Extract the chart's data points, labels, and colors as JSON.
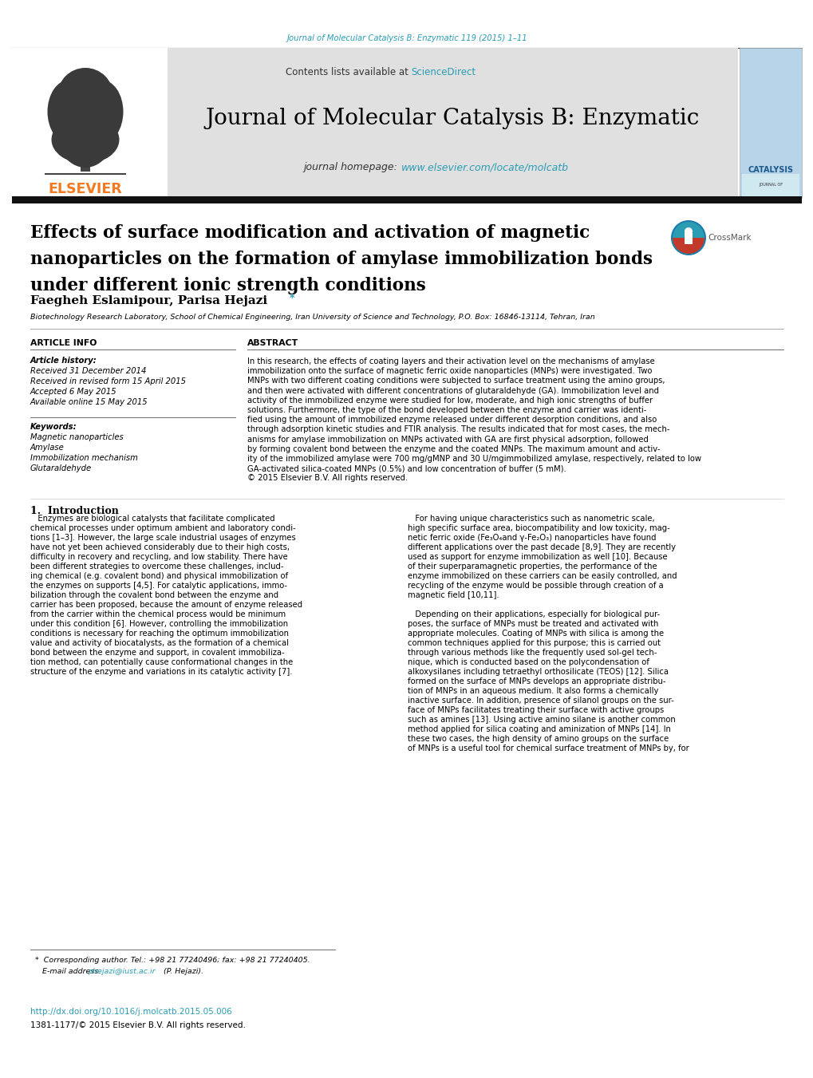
{
  "page_bg": "#ffffff",
  "top_journal_ref": "Journal of Molecular Catalysis B: Enzymatic 119 (2015) 1–11",
  "top_journal_ref_color": "#2a9db5",
  "header_bg": "#e0e0e0",
  "header_contents_text": "Contents lists available at ",
  "header_sciencedirect": "ScienceDirect",
  "header_sciencedirect_color": "#2a9db5",
  "journal_title": "Journal of Molecular Catalysis B: Enzymatic",
  "journal_homepage_prefix": "journal homepage: ",
  "journal_homepage_url": "www.elsevier.com/locate/molcatb",
  "journal_homepage_url_color": "#2a9db5",
  "elsevier_color": "#f47920",
  "paper_title_line1": "Effects of surface modification and activation of magnetic",
  "paper_title_line2": "nanoparticles on the formation of amylase immobilization bonds",
  "paper_title_line3": "under different ionic strength conditions",
  "author_line": "Faegheh Eslamipour, Parisa Hejazi",
  "author_asterisk": "*",
  "author_asterisk_color": "#2a9db5",
  "affiliation": "Biotechnology Research Laboratory, School of Chemical Engineering, Iran University of Science and Technology, P.O. Box: 16846-13114, Tehran, Iran",
  "article_info_title": "ARTICLE INFO",
  "article_history_label": "Article history:",
  "received_1": "Received 31 December 2014",
  "received_revised": "Received in revised form 15 April 2015",
  "accepted": "Accepted 6 May 2015",
  "available": "Available online 15 May 2015",
  "keywords_label": "Keywords:",
  "keywords": [
    "Magnetic nanoparticles",
    "Amylase",
    "Immobilization mechanism",
    "Glutaraldehyde"
  ],
  "abstract_title": "ABSTRACT",
  "abstract_lines": [
    "In this research, the effects of coating layers and their activation level on the mechanisms of amylase",
    "immobilization onto the surface of magnetic ferric oxide nanoparticles (MNPs) were investigated. Two",
    "MNPs with two different coating conditions were subjected to surface treatment using the amino groups,",
    "and then were activated with different concentrations of glutaraldehyde (GA). Immobilization level and",
    "activity of the immobilized enzyme were studied for low, moderate, and high ionic strengths of buffer",
    "solutions. Furthermore, the type of the bond developed between the enzyme and carrier was identi-",
    "fied using the amount of immobilized enzyme released under different desorption conditions, and also",
    "through adsorption kinetic studies and FTIR analysis. The results indicated that for most cases, the mech-",
    "anisms for amylase immobilization on MNPs activated with GA are first physical adsorption, followed",
    "by forming covalent bond between the enzyme and the coated MNPs. The maximum amount and activ-",
    "ity of the immobilized amylase were 700 mg/gMNP and 30 U/mgimmobilized amylase, respectively, related to low",
    "GA-activated silica-coated MNPs (0.5%) and low concentration of buffer (5 mM).",
    "© 2015 Elsevier B.V. All rights reserved."
  ],
  "intro_title": "1.  Introduction",
  "intro_col1_lines": [
    "   Enzymes are biological catalysts that facilitate complicated",
    "chemical processes under optimum ambient and laboratory condi-",
    "tions [1–3]. However, the large scale industrial usages of enzymes",
    "have not yet been achieved considerably due to their high costs,",
    "difficulty in recovery and recycling, and low stability. There have",
    "been different strategies to overcome these challenges, includ-",
    "ing chemical (e.g. covalent bond) and physical immobilization of",
    "the enzymes on supports [4,5]. For catalytic applications, immo-",
    "bilization through the covalent bond between the enzyme and",
    "carrier has been proposed, because the amount of enzyme released",
    "from the carrier within the chemical process would be minimum",
    "under this condition [6]. However, controlling the immobilization",
    "conditions is necessary for reaching the optimum immobilization",
    "value and activity of biocatalysts, as the formation of a chemical",
    "bond between the enzyme and support, in covalent immobiliza-",
    "tion method, can potentially cause conformational changes in the",
    "structure of the enzyme and variations in its catalytic activity [7]."
  ],
  "intro_col2_lines": [
    "   For having unique characteristics such as nanometric scale,",
    "high specific surface area, biocompatibility and low toxicity, mag-",
    "netic ferric oxide (Fe₃O₄and γ-Fe₂O₃) nanoparticles have found",
    "different applications over the past decade [8,9]. They are recently",
    "used as support for enzyme immobilization as well [10]. Because",
    "of their superparamagnetic properties, the performance of the",
    "enzyme immobilized on these carriers can be easily controlled, and",
    "recycling of the enzyme would be possible through creation of a",
    "magnetic field [10,11].",
    "",
    "   Depending on their applications, especially for biological pur-",
    "poses, the surface of MNPs must be treated and activated with",
    "appropriate molecules. Coating of MNPs with silica is among the",
    "common techniques applied for this purpose; this is carried out",
    "through various methods like the frequently used sol-gel tech-",
    "nique, which is conducted based on the polycondensation of",
    "alkoxysilanes including tetraethyl orthosilicate (TEOS) [12]. Silica",
    "formed on the surface of MNPs develops an appropriate distribu-",
    "tion of MNPs in an aqueous medium. It also forms a chemically",
    "inactive surface. In addition, presence of silanol groups on the sur-",
    "face of MNPs facilitates treating their surface with active groups",
    "such as amines [13]. Using active amino silane is another common",
    "method applied for silica coating and aminization of MNPs [14]. In",
    "these two cases, the high density of amino groups on the surface",
    "of MNPs is a useful tool for chemical surface treatment of MNPs by, for"
  ],
  "footnote_line1": "  *  Corresponding author. Tel.: +98 21 77240496; fax: +98 21 77240405.",
  "footnote_line2_pre": "     E-mail address: ",
  "footnote_email": "phejazi@iust.ac.ir",
  "footnote_email_color": "#2a9db5",
  "footnote_line2_post": " (P. Hejazi).",
  "doi_text": "http://dx.doi.org/10.1016/j.molcatb.2015.05.006",
  "doi_color": "#2a9db5",
  "issn_text": "1381-1177/© 2015 Elsevier B.V. All rights reserved."
}
